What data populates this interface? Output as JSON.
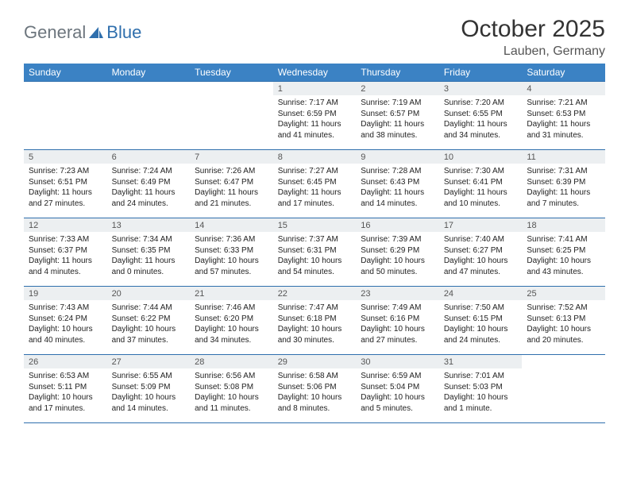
{
  "logo": {
    "text1": "General",
    "text2": "Blue"
  },
  "title": "October 2025",
  "location": "Lauben, Germany",
  "colors": {
    "header_bg": "#3b82c4",
    "header_text": "#ffffff",
    "daynum_bg": "#eceff1",
    "border": "#2f6fad",
    "logo_gray": "#6c757d",
    "logo_blue": "#2f6fad"
  },
  "day_headers": [
    "Sunday",
    "Monday",
    "Tuesday",
    "Wednesday",
    "Thursday",
    "Friday",
    "Saturday"
  ],
  "weeks": [
    [
      null,
      null,
      null,
      {
        "n": "1",
        "sr": "7:17 AM",
        "ss": "6:59 PM",
        "dl": "11 hours and 41 minutes."
      },
      {
        "n": "2",
        "sr": "7:19 AM",
        "ss": "6:57 PM",
        "dl": "11 hours and 38 minutes."
      },
      {
        "n": "3",
        "sr": "7:20 AM",
        "ss": "6:55 PM",
        "dl": "11 hours and 34 minutes."
      },
      {
        "n": "4",
        "sr": "7:21 AM",
        "ss": "6:53 PM",
        "dl": "11 hours and 31 minutes."
      }
    ],
    [
      {
        "n": "5",
        "sr": "7:23 AM",
        "ss": "6:51 PM",
        "dl": "11 hours and 27 minutes."
      },
      {
        "n": "6",
        "sr": "7:24 AM",
        "ss": "6:49 PM",
        "dl": "11 hours and 24 minutes."
      },
      {
        "n": "7",
        "sr": "7:26 AM",
        "ss": "6:47 PM",
        "dl": "11 hours and 21 minutes."
      },
      {
        "n": "8",
        "sr": "7:27 AM",
        "ss": "6:45 PM",
        "dl": "11 hours and 17 minutes."
      },
      {
        "n": "9",
        "sr": "7:28 AM",
        "ss": "6:43 PM",
        "dl": "11 hours and 14 minutes."
      },
      {
        "n": "10",
        "sr": "7:30 AM",
        "ss": "6:41 PM",
        "dl": "11 hours and 10 minutes."
      },
      {
        "n": "11",
        "sr": "7:31 AM",
        "ss": "6:39 PM",
        "dl": "11 hours and 7 minutes."
      }
    ],
    [
      {
        "n": "12",
        "sr": "7:33 AM",
        "ss": "6:37 PM",
        "dl": "11 hours and 4 minutes."
      },
      {
        "n": "13",
        "sr": "7:34 AM",
        "ss": "6:35 PM",
        "dl": "11 hours and 0 minutes."
      },
      {
        "n": "14",
        "sr": "7:36 AM",
        "ss": "6:33 PM",
        "dl": "10 hours and 57 minutes."
      },
      {
        "n": "15",
        "sr": "7:37 AM",
        "ss": "6:31 PM",
        "dl": "10 hours and 54 minutes."
      },
      {
        "n": "16",
        "sr": "7:39 AM",
        "ss": "6:29 PM",
        "dl": "10 hours and 50 minutes."
      },
      {
        "n": "17",
        "sr": "7:40 AM",
        "ss": "6:27 PM",
        "dl": "10 hours and 47 minutes."
      },
      {
        "n": "18",
        "sr": "7:41 AM",
        "ss": "6:25 PM",
        "dl": "10 hours and 43 minutes."
      }
    ],
    [
      {
        "n": "19",
        "sr": "7:43 AM",
        "ss": "6:24 PM",
        "dl": "10 hours and 40 minutes."
      },
      {
        "n": "20",
        "sr": "7:44 AM",
        "ss": "6:22 PM",
        "dl": "10 hours and 37 minutes."
      },
      {
        "n": "21",
        "sr": "7:46 AM",
        "ss": "6:20 PM",
        "dl": "10 hours and 34 minutes."
      },
      {
        "n": "22",
        "sr": "7:47 AM",
        "ss": "6:18 PM",
        "dl": "10 hours and 30 minutes."
      },
      {
        "n": "23",
        "sr": "7:49 AM",
        "ss": "6:16 PM",
        "dl": "10 hours and 27 minutes."
      },
      {
        "n": "24",
        "sr": "7:50 AM",
        "ss": "6:15 PM",
        "dl": "10 hours and 24 minutes."
      },
      {
        "n": "25",
        "sr": "7:52 AM",
        "ss": "6:13 PM",
        "dl": "10 hours and 20 minutes."
      }
    ],
    [
      {
        "n": "26",
        "sr": "6:53 AM",
        "ss": "5:11 PM",
        "dl": "10 hours and 17 minutes."
      },
      {
        "n": "27",
        "sr": "6:55 AM",
        "ss": "5:09 PM",
        "dl": "10 hours and 14 minutes."
      },
      {
        "n": "28",
        "sr": "6:56 AM",
        "ss": "5:08 PM",
        "dl": "10 hours and 11 minutes."
      },
      {
        "n": "29",
        "sr": "6:58 AM",
        "ss": "5:06 PM",
        "dl": "10 hours and 8 minutes."
      },
      {
        "n": "30",
        "sr": "6:59 AM",
        "ss": "5:04 PM",
        "dl": "10 hours and 5 minutes."
      },
      {
        "n": "31",
        "sr": "7:01 AM",
        "ss": "5:03 PM",
        "dl": "10 hours and 1 minute."
      },
      null
    ]
  ],
  "labels": {
    "sunrise": "Sunrise:",
    "sunset": "Sunset:",
    "daylight": "Daylight:"
  }
}
